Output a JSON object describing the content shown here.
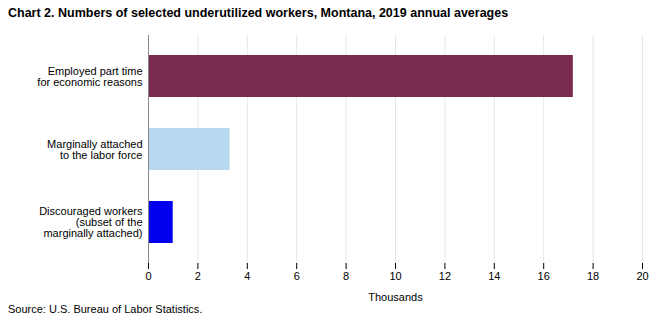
{
  "chart_data": {
    "type": "bar",
    "orientation": "horizontal",
    "title": "Chart 2. Numbers of selected underutilized workers, Montana, 2019 annual averages",
    "caption": "Source: U.S. Bureau of Labor Statistics.",
    "categories": [
      "Discouraged workers\n(subset of the\nmarginally attached)",
      "Marginally attached\nto the labor force",
      "Employed part time\nfor economic reasons"
    ],
    "values": [
      1.0,
      3.3,
      17.2
    ],
    "colors": [
      "#0000ee",
      "#b8d8f0",
      "#7b2b50"
    ],
    "xlabel": "Thousands",
    "xlim": [
      0,
      20
    ],
    "xticks": [
      0,
      2,
      4,
      6,
      8,
      10,
      12,
      14,
      16,
      18,
      20
    ],
    "grid": true
  }
}
